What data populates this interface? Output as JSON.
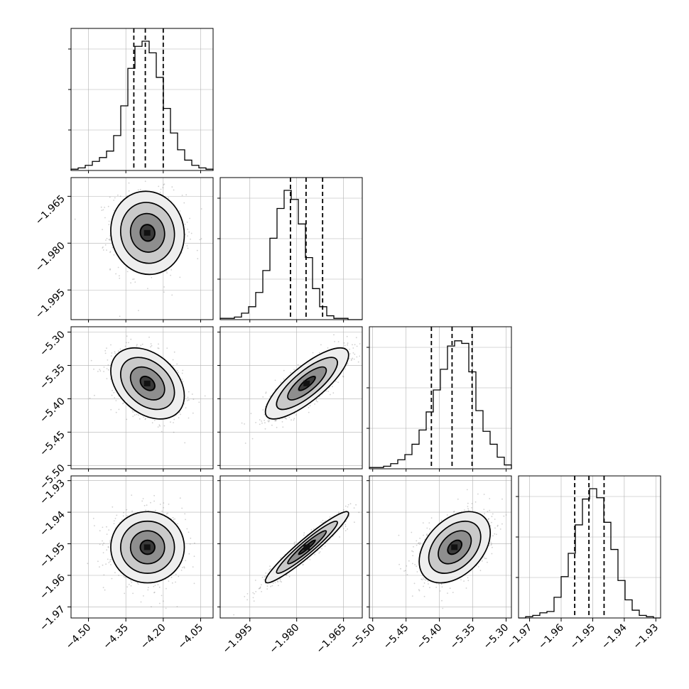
{
  "chart_data": {
    "type": "corner",
    "grid": true,
    "parameters": [
      {
        "index": 0,
        "range": [
          -4.57,
          -4.0
        ],
        "ticks": [
          "−4.50",
          "−4.35",
          "−4.20",
          "−4.05"
        ],
        "tick_values": [
          -4.5,
          -4.35,
          -4.2,
          -4.05
        ],
        "mean": -4.263,
        "sigma": 0.072,
        "quantiles": [
          -4.318,
          -4.272,
          -4.2
        ]
      },
      {
        "index": 1,
        "range": [
          -2.0045,
          -1.959
        ],
        "ticks": [
          "−1.995",
          "−1.980",
          "−1.965"
        ],
        "tick_values": [
          -1.995,
          -1.98,
          -1.965
        ],
        "mean": -1.9767,
        "sigma": 0.0065,
        "quantiles": [
          -1.982,
          -1.977,
          -1.9717
        ]
      },
      {
        "index": 2,
        "range": [
          -5.505,
          -5.292
        ],
        "ticks": [
          "−5.50",
          "−5.45",
          "−5.40",
          "−5.35",
          "−5.30"
        ],
        "tick_values": [
          -5.5,
          -5.45,
          -5.4,
          -5.35,
          -5.3
        ],
        "mean": -5.377,
        "sigma": 0.026,
        "quantiles": [
          -5.412,
          -5.381,
          -5.351
        ]
      },
      {
        "index": 3,
        "range": [
          -1.9735,
          -1.9285
        ],
        "ticks": [
          "−1.97",
          "−1.96",
          "−1.95",
          "−1.94",
          "−1.93"
        ],
        "tick_values": [
          -1.97,
          -1.96,
          -1.95,
          -1.94,
          -1.93
        ],
        "mean": -1.9511,
        "sigma": 0.0055,
        "quantiles": [
          -1.9557,
          -1.9512,
          -1.9464
        ]
      }
    ],
    "correlations": [
      {
        "i": 1,
        "j": 0,
        "rho": -0.05
      },
      {
        "i": 2,
        "j": 0,
        "rho": -0.35
      },
      {
        "i": 2,
        "j": 1,
        "rho": 0.8
      },
      {
        "i": 3,
        "j": 0,
        "rho": 0.0
      },
      {
        "i": 3,
        "j": 1,
        "rho": 0.95
      },
      {
        "i": 3,
        "j": 2,
        "rho": 0.4
      }
    ],
    "histograms": [
      [
        0.01,
        0.02,
        0.04,
        0.07,
        0.1,
        0.15,
        0.27,
        0.5,
        0.79,
        0.96,
        1.0,
        0.91,
        0.72,
        0.48,
        0.29,
        0.16,
        0.08,
        0.04,
        0.02,
        0.01
      ],
      [
        0.01,
        0.01,
        0.02,
        0.05,
        0.1,
        0.21,
        0.38,
        0.63,
        0.86,
        1.0,
        0.93,
        0.74,
        0.48,
        0.24,
        0.1,
        0.03,
        0.01,
        0.01,
        0.0,
        0.0
      ],
      [
        0.01,
        0.01,
        0.02,
        0.04,
        0.07,
        0.11,
        0.19,
        0.3,
        0.44,
        0.61,
        0.77,
        0.95,
        0.99,
        0.97,
        0.75,
        0.45,
        0.29,
        0.19,
        0.09,
        0.03
      ],
      [
        0.0,
        0.01,
        0.02,
        0.04,
        0.05,
        0.16,
        0.32,
        0.5,
        0.72,
        0.92,
        1.0,
        0.93,
        0.74,
        0.53,
        0.29,
        0.14,
        0.06,
        0.02,
        0.01,
        0.0
      ]
    ]
  }
}
